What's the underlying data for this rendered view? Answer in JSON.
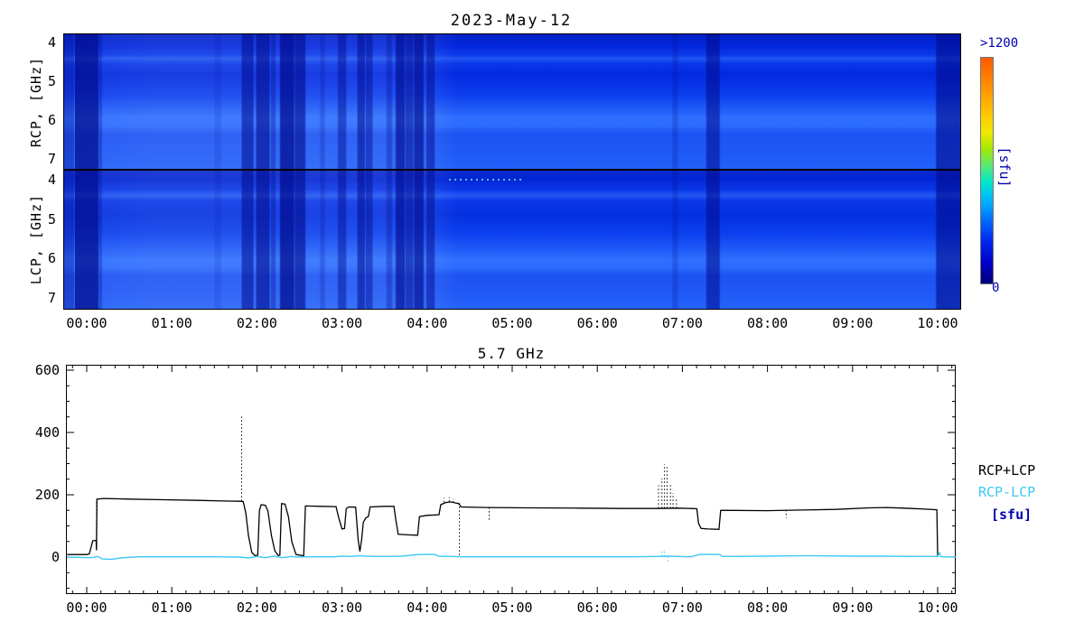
{
  "figure": {
    "date_title": "2023-May-12",
    "units": "[sfu]"
  },
  "chart_data": [
    {
      "type": "heatmap",
      "title": "2023-May-12",
      "xlabel": "",
      "x_tick_labels": [
        "00:00",
        "01:00",
        "02:00",
        "03:00",
        "04:00",
        "05:00",
        "06:00",
        "07:00",
        "08:00",
        "09:00",
        "10:00"
      ],
      "x_tick_hours": [
        0,
        1,
        2,
        3,
        4,
        5,
        6,
        7,
        8,
        9,
        10
      ],
      "time_range_hours": [
        -0.276,
        10.255
      ],
      "panels": [
        {
          "ylabel": "RCP, [GHz]",
          "yticks": [
            "4",
            "5",
            "6",
            "7"
          ],
          "freq_top": 3.77,
          "freq_bottom": 7.22,
          "row_stops": [
            [
              "#0222C6",
              "0%"
            ],
            [
              "#0226DC",
              "8%"
            ],
            [
              "#0A38E8",
              "15%"
            ],
            [
              "#1E55F2",
              "18%"
            ],
            [
              "#0A36E8",
              "22%"
            ],
            [
              "#0329E0",
              "30%"
            ],
            [
              "#0C3EEE",
              "45%"
            ],
            [
              "#2462FA",
              "58%"
            ],
            [
              "#2E6FFF",
              "62%"
            ],
            [
              "#2B6BFF",
              "68%"
            ],
            [
              "#1C52F2",
              "74%"
            ],
            [
              "#1E58F6",
              "85%"
            ],
            [
              "#2160F8",
              "100%"
            ]
          ]
        },
        {
          "ylabel": "LCP, [GHz]",
          "yticks": [
            "4",
            "5",
            "6",
            "7"
          ],
          "freq_top": 3.75,
          "freq_bottom": 7.25,
          "row_stops": [
            [
              "#0A2ACC",
              "0%"
            ],
            [
              "#0225D4",
              "6%"
            ],
            [
              "#0A38E8",
              "14%"
            ],
            [
              "#2257F2",
              "18%"
            ],
            [
              "#0A36E8",
              "22%"
            ],
            [
              "#0431E0",
              "32%"
            ],
            [
              "#0C40EE",
              "46%"
            ],
            [
              "#2462FA",
              "60%"
            ],
            [
              "#2E6FFF",
              "64%"
            ],
            [
              "#2B6BFF",
              "70%"
            ],
            [
              "#1C52F2",
              "76%"
            ],
            [
              "#2058F6",
              "88%"
            ],
            [
              "#2463FA",
              "100%"
            ]
          ]
        }
      ],
      "dark_bands": [
        [
          -0.276,
          -0.17,
          0.35
        ],
        [
          -0.17,
          0.12,
          0.72
        ],
        [
          0.12,
          0.16,
          0.3
        ],
        [
          1.5,
          1.56,
          0.12
        ],
        [
          1.82,
          1.94,
          0.55
        ],
        [
          1.99,
          2.13,
          0.6
        ],
        [
          2.16,
          2.2,
          0.35
        ],
        [
          2.27,
          2.42,
          0.72
        ],
        [
          2.42,
          2.55,
          0.6
        ],
        [
          2.74,
          2.78,
          0.2
        ],
        [
          2.95,
          3.03,
          0.45
        ],
        [
          3.18,
          3.25,
          0.55
        ],
        [
          3.27,
          3.34,
          0.45
        ],
        [
          3.52,
          3.57,
          0.3
        ],
        [
          3.63,
          3.72,
          0.65
        ],
        [
          3.72,
          3.82,
          0.5
        ],
        [
          3.82,
          3.94,
          0.65
        ],
        [
          3.99,
          4.07,
          0.5
        ],
        [
          6.88,
          6.93,
          0.2
        ],
        [
          7.28,
          7.42,
          0.55
        ],
        [
          9.98,
          10.255,
          0.6
        ]
      ],
      "colorbar": {
        "top_label": ">1200",
        "bottom_label": "0",
        "unit_label": "[sfu]",
        "scale_min": 0,
        "scale_max": 1200,
        "stops": [
          [
            "#FF5A00",
            "0%"
          ],
          [
            "#FF8C00",
            "12%"
          ],
          [
            "#FFC800",
            "25%"
          ],
          [
            "#F0E800",
            "33%"
          ],
          [
            "#A8E800",
            "40%"
          ],
          [
            "#58E878",
            "48%"
          ],
          [
            "#00E8C8",
            "55%"
          ],
          [
            "#00C8F0",
            "60%"
          ],
          [
            "#00A0FF",
            "66%"
          ],
          [
            "#0064FF",
            "73%"
          ],
          [
            "#0028F0",
            "81%"
          ],
          [
            "#0000C8",
            "91%"
          ],
          [
            "#000078",
            "100%"
          ]
        ]
      }
    },
    {
      "type": "line",
      "title": "5.7 GHz",
      "y_tick_labels": [
        "0",
        "200",
        "400",
        "600"
      ],
      "y_tick_values": [
        0,
        200,
        400,
        600
      ],
      "ylim": [
        -119,
        617
      ],
      "x_tick_labels": [
        "00:00",
        "01:00",
        "02:00",
        "03:00",
        "04:00",
        "05:00",
        "06:00",
        "07:00",
        "08:00",
        "09:00",
        "10:00"
      ],
      "x_tick_hours": [
        0,
        1,
        2,
        3,
        4,
        5,
        6,
        7,
        8,
        9,
        10
      ],
      "time_range_hours": [
        -0.244,
        10.21
      ],
      "legend": [
        {
          "label": "RCP+LCP",
          "color": "#000000"
        },
        {
          "label": "RCP-LCP",
          "color": "#3EC8F5"
        },
        {
          "label": "[sfu]",
          "color": "#0000B0"
        }
      ],
      "series": [
        {
          "name": "RCP+LCP",
          "color": "#000000",
          "points": [
            [
              -0.23,
              8
            ],
            [
              0.0,
              8
            ],
            [
              0.03,
              10
            ],
            [
              0.05,
              30
            ],
            [
              0.07,
              52
            ],
            [
              0.11,
              54
            ],
            [
              0.115,
              22
            ],
            [
              0.12,
              186
            ],
            [
              0.2,
              188
            ],
            [
              0.5,
              186
            ],
            [
              0.9,
              184
            ],
            [
              1.3,
              182
            ],
            [
              1.6,
              180
            ],
            [
              1.8,
              179
            ],
            [
              1.84,
              178
            ],
            [
              1.87,
              140
            ],
            [
              1.9,
              70
            ],
            [
              1.94,
              15
            ],
            [
              1.98,
              4
            ],
            [
              2.01,
              6
            ],
            [
              2.03,
              150
            ],
            [
              2.05,
              168
            ],
            [
              2.1,
              166
            ],
            [
              2.13,
              148
            ],
            [
              2.17,
              70
            ],
            [
              2.21,
              20
            ],
            [
              2.25,
              5
            ],
            [
              2.27,
              6
            ],
            [
              2.29,
              172
            ],
            [
              2.33,
              170
            ],
            [
              2.37,
              130
            ],
            [
              2.41,
              50
            ],
            [
              2.46,
              8
            ],
            [
              2.55,
              4
            ],
            [
              2.57,
              164
            ],
            [
              2.75,
              163
            ],
            [
              2.93,
              162
            ],
            [
              2.96,
              128
            ],
            [
              3.0,
              90
            ],
            [
              3.03,
              92
            ],
            [
              3.05,
              156
            ],
            [
              3.08,
              161
            ],
            [
              3.16,
              160
            ],
            [
              3.19,
              55
            ],
            [
              3.21,
              18
            ],
            [
              3.23,
              55
            ],
            [
              3.25,
              112
            ],
            [
              3.28,
              126
            ],
            [
              3.31,
              130
            ],
            [
              3.33,
              161
            ],
            [
              3.5,
              163
            ],
            [
              3.61,
              163
            ],
            [
              3.63,
              125
            ],
            [
              3.66,
              73
            ],
            [
              3.8,
              71
            ],
            [
              3.89,
              70
            ],
            [
              3.91,
              130
            ],
            [
              4.0,
              134
            ],
            [
              4.14,
              136
            ],
            [
              4.16,
              168
            ],
            [
              4.22,
              175
            ],
            [
              4.28,
              177
            ],
            [
              4.33,
              174
            ],
            [
              4.37,
              172
            ],
            [
              4.4,
              161
            ],
            [
              4.7,
              159
            ],
            [
              5.2,
              158
            ],
            [
              5.8,
              157
            ],
            [
              6.3,
              156
            ],
            [
              6.7,
              156
            ],
            [
              6.95,
              157
            ],
            [
              7.1,
              156
            ],
            [
              7.17,
              155
            ],
            [
              7.19,
              108
            ],
            [
              7.22,
              92
            ],
            [
              7.3,
              90
            ],
            [
              7.43,
              89
            ],
            [
              7.45,
              150
            ],
            [
              7.6,
              150
            ],
            [
              8.0,
              149
            ],
            [
              8.4,
              151
            ],
            [
              8.8,
              153
            ],
            [
              9.2,
              158
            ],
            [
              9.4,
              159
            ],
            [
              9.6,
              157
            ],
            [
              9.85,
              154
            ],
            [
              9.99,
              152
            ],
            [
              10.0,
              3
            ],
            [
              10.01,
              2
            ]
          ]
        },
        {
          "name": "RCP-LCP",
          "color": "#3EC8F5",
          "points": [
            [
              -0.23,
              0
            ],
            [
              0.05,
              -2
            ],
            [
              0.13,
              2
            ],
            [
              0.18,
              -6
            ],
            [
              0.3,
              -7
            ],
            [
              0.4,
              -3
            ],
            [
              0.6,
              1
            ],
            [
              1.0,
              1
            ],
            [
              1.5,
              1
            ],
            [
              1.8,
              0
            ],
            [
              1.9,
              -3
            ],
            [
              2.0,
              2
            ],
            [
              2.1,
              -2
            ],
            [
              2.2,
              3
            ],
            [
              2.3,
              -2
            ],
            [
              2.4,
              2
            ],
            [
              2.5,
              0
            ],
            [
              2.6,
              1
            ],
            [
              2.9,
              1
            ],
            [
              3.0,
              3
            ],
            [
              3.1,
              2
            ],
            [
              3.2,
              4
            ],
            [
              3.3,
              3
            ],
            [
              3.4,
              2
            ],
            [
              3.55,
              2
            ],
            [
              3.7,
              3
            ],
            [
              3.9,
              8
            ],
            [
              4.0,
              9
            ],
            [
              4.1,
              8
            ],
            [
              4.13,
              3
            ],
            [
              4.3,
              2
            ],
            [
              4.4,
              1
            ],
            [
              5.0,
              1
            ],
            [
              5.5,
              1
            ],
            [
              6.0,
              1
            ],
            [
              6.4,
              1
            ],
            [
              6.7,
              2
            ],
            [
              6.85,
              3
            ],
            [
              6.95,
              2
            ],
            [
              7.1,
              1
            ],
            [
              7.2,
              8
            ],
            [
              7.3,
              9
            ],
            [
              7.44,
              8
            ],
            [
              7.47,
              2
            ],
            [
              7.6,
              2
            ],
            [
              8.0,
              3
            ],
            [
              8.3,
              4
            ],
            [
              8.6,
              4
            ],
            [
              9.0,
              3
            ],
            [
              9.4,
              3
            ],
            [
              9.7,
              2
            ],
            [
              10.0,
              2
            ],
            [
              10.02,
              14
            ],
            [
              10.04,
              1
            ],
            [
              10.21,
              0
            ]
          ]
        }
      ],
      "spikes_black": [
        [
          0.115,
          22,
          186
        ],
        [
          1.82,
          180,
          455
        ],
        [
          4.2,
          176,
          190
        ],
        [
          4.26,
          178,
          192
        ],
        [
          4.31,
          175,
          188
        ],
        [
          4.38,
          173,
          6
        ],
        [
          4.73,
          159,
          120
        ],
        [
          6.72,
          157,
          230
        ],
        [
          6.76,
          157,
          252
        ],
        [
          6.79,
          157,
          298
        ],
        [
          6.82,
          157,
          288
        ],
        [
          6.86,
          157,
          235
        ],
        [
          6.89,
          157,
          205
        ],
        [
          6.93,
          157,
          185
        ],
        [
          8.22,
          151,
          126
        ]
      ],
      "spikes_cyan": [
        [
          6.76,
          2,
          18
        ],
        [
          6.79,
          2,
          26
        ],
        [
          6.83,
          2,
          -20
        ],
        [
          10.01,
          1,
          14
        ]
      ]
    }
  ]
}
